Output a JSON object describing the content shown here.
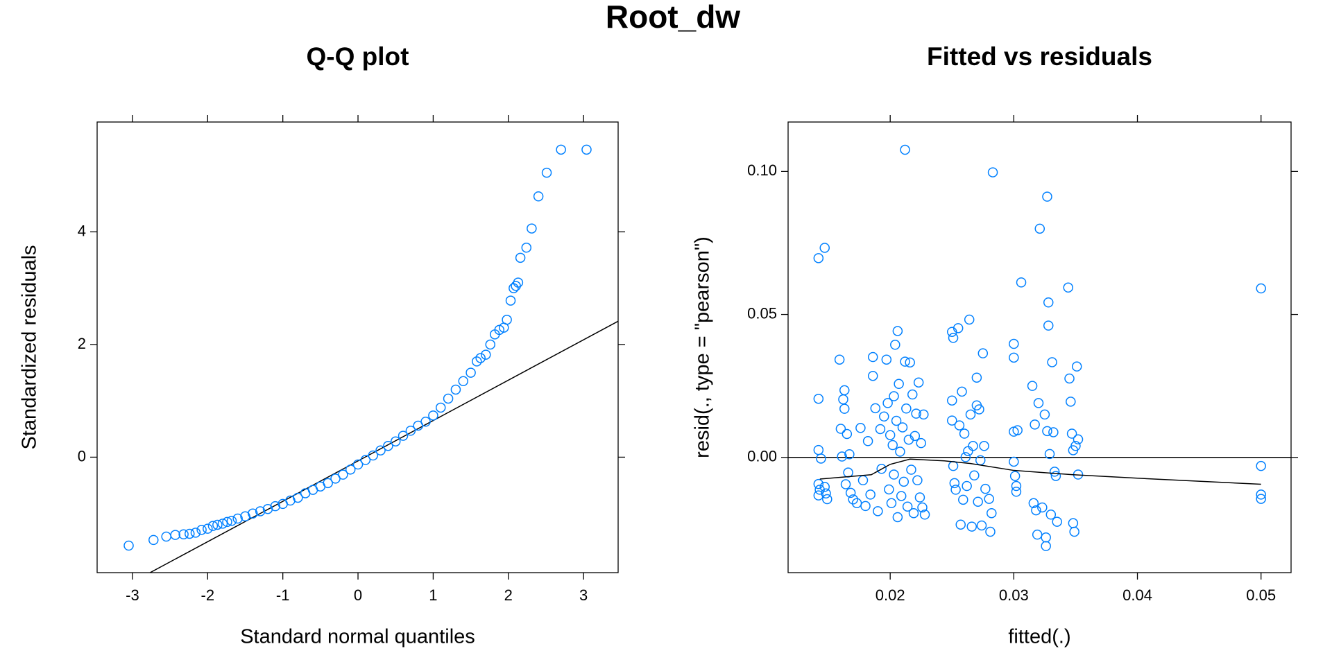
{
  "title": "Root_dw",
  "chart_data": [
    {
      "type": "scatter",
      "title": "Q-Q plot",
      "xlabel": "Standard normal quantiles",
      "ylabel": "Standardized residuals",
      "color": "#0080ff",
      "xlim": [
        -3.47,
        3.46
      ],
      "ylim": [
        -2.05,
        5.95
      ],
      "xticks": [
        -3,
        -2,
        -1,
        0,
        1,
        2,
        3
      ],
      "yticks": [
        0,
        2,
        4
      ],
      "x": [
        -3.05,
        -2.72,
        -2.55,
        -2.43,
        -2.32,
        -2.24,
        -2.16,
        -2.08,
        -2.0,
        -1.93,
        -1.87,
        -1.8,
        -1.74,
        -1.68,
        -1.6,
        -1.5,
        -1.4,
        -1.3,
        -1.2,
        -1.1,
        -1.0,
        -0.9,
        -0.8,
        -0.7,
        -0.6,
        -0.5,
        -0.4,
        -0.3,
        -0.2,
        -0.1,
        0.0,
        0.1,
        0.2,
        0.3,
        0.4,
        0.5,
        0.6,
        0.7,
        0.8,
        0.9,
        1.0,
        1.1,
        1.2,
        1.3,
        1.4,
        1.5,
        1.58,
        1.63,
        1.7,
        1.76,
        1.82,
        1.88,
        1.94,
        1.98,
        2.03,
        2.07,
        2.1,
        2.13,
        2.16,
        2.24,
        2.31,
        2.4,
        2.51,
        2.7,
        3.04
      ],
      "y": [
        -1.57,
        -1.47,
        -1.41,
        -1.38,
        -1.37,
        -1.36,
        -1.34,
        -1.29,
        -1.27,
        -1.22,
        -1.2,
        -1.18,
        -1.15,
        -1.13,
        -1.09,
        -1.05,
        -1.0,
        -0.96,
        -0.92,
        -0.87,
        -0.83,
        -0.77,
        -0.72,
        -0.64,
        -0.58,
        -0.52,
        -0.46,
        -0.38,
        -0.31,
        -0.22,
        -0.13,
        -0.05,
        0.03,
        0.12,
        0.2,
        0.28,
        0.38,
        0.47,
        0.56,
        0.63,
        0.74,
        0.88,
        1.04,
        1.2,
        1.35,
        1.5,
        1.7,
        1.76,
        1.82,
        2.0,
        2.18,
        2.26,
        2.3,
        2.44,
        2.78,
        3.0,
        3.04,
        3.1,
        3.54,
        3.72,
        4.06,
        4.63,
        5.05,
        5.46,
        5.46
      ],
      "line": {
        "intercept": -0.067,
        "slope": 0.717
      }
    },
    {
      "type": "scatter",
      "title": "Fitted vs residuals",
      "xlabel": "fitted(.)",
      "ylabel": "resid(., type = \"pearson\")",
      "color": "#0080ff",
      "xlim": [
        0.01174,
        0.05243
      ],
      "ylim": [
        -0.0403,
        0.1173
      ],
      "xticks": [
        0.02,
        0.03,
        0.04,
        0.05
      ],
      "yticks": [
        {
          "value": 0,
          "label": "0.00"
        },
        0.05,
        {
          "value": 0.1,
          "label": "0.10"
        }
      ],
      "x": [
        0.0142,
        0.0147,
        0.0142,
        0.0142,
        0.0144,
        0.0142,
        0.0147,
        0.0143,
        0.0142,
        0.0148,
        0.0149,
        0.0159,
        0.0163,
        0.0162,
        0.0163,
        0.016,
        0.0165,
        0.0167,
        0.0161,
        0.0166,
        0.0164,
        0.0168,
        0.017,
        0.0173,
        0.0176,
        0.0178,
        0.018,
        0.0182,
        0.0184,
        0.0186,
        0.0186,
        0.0188,
        0.019,
        0.0192,
        0.0193,
        0.0195,
        0.0197,
        0.0198,
        0.0199,
        0.02,
        0.0201,
        0.0202,
        0.0203,
        0.0203,
        0.0204,
        0.0205,
        0.0206,
        0.0206,
        0.0207,
        0.0208,
        0.0209,
        0.021,
        0.0211,
        0.0212,
        0.0212,
        0.0213,
        0.0214,
        0.0215,
        0.0216,
        0.0217,
        0.0218,
        0.0219,
        0.022,
        0.0221,
        0.0222,
        0.0223,
        0.0224,
        0.0225,
        0.0226,
        0.0227,
        0.0228,
        0.025,
        0.025,
        0.025,
        0.0251,
        0.0251,
        0.0252,
        0.0253,
        0.0255,
        0.0256,
        0.0257,
        0.0258,
        0.0259,
        0.026,
        0.0261,
        0.0262,
        0.0263,
        0.0264,
        0.0265,
        0.0266,
        0.0267,
        0.0268,
        0.027,
        0.027,
        0.0271,
        0.0272,
        0.0273,
        0.0274,
        0.0275,
        0.0276,
        0.0277,
        0.028,
        0.0281,
        0.0282,
        0.0283,
        0.03,
        0.03,
        0.03,
        0.03,
        0.0301,
        0.0302,
        0.0302,
        0.0303,
        0.0306,
        0.0315,
        0.0316,
        0.0317,
        0.0318,
        0.0319,
        0.032,
        0.0321,
        0.0323,
        0.0325,
        0.0326,
        0.0326,
        0.0327,
        0.0327,
        0.0328,
        0.0328,
        0.0329,
        0.033,
        0.0331,
        0.0332,
        0.0333,
        0.0334,
        0.0335,
        0.0344,
        0.0345,
        0.0346,
        0.0347,
        0.0348,
        0.0348,
        0.0349,
        0.035,
        0.0351,
        0.0352,
        0.0352,
        0.05,
        0.05,
        0.05,
        0.05
      ],
      "y": [
        0.0697,
        0.0733,
        0.0205,
        0.0026,
        -0.0004,
        -0.0093,
        -0.0103,
        -0.0113,
        -0.0133,
        -0.0126,
        -0.0146,
        0.0342,
        0.0235,
        0.0203,
        0.017,
        0.01,
        0.0082,
        0.0011,
        0.0003,
        -0.0053,
        -0.0094,
        -0.0124,
        -0.0147,
        -0.016,
        0.0103,
        -0.008,
        -0.017,
        0.0057,
        -0.013,
        0.0351,
        0.0285,
        0.0172,
        -0.0188,
        0.0099,
        -0.004,
        0.0143,
        0.0342,
        0.019,
        -0.0112,
        0.0078,
        -0.016,
        0.0043,
        0.0214,
        -0.006,
        0.0394,
        0.0128,
        0.0442,
        -0.0209,
        0.0257,
        0.002,
        -0.0135,
        0.0105,
        -0.0085,
        0.0335,
        0.1076,
        0.0171,
        -0.0172,
        0.0062,
        0.0332,
        -0.0043,
        0.022,
        -0.0195,
        0.0075,
        0.0153,
        -0.008,
        0.0262,
        -0.014,
        0.005,
        -0.0175,
        0.015,
        -0.02,
        0.0199,
        0.0129,
        0.0439,
        0.0418,
        -0.003,
        -0.009,
        -0.0113,
        0.0452,
        0.0112,
        -0.0235,
        0.023,
        -0.0148,
        0.0083,
        0.0001,
        -0.01,
        0.0022,
        0.0482,
        0.015,
        -0.0242,
        0.004,
        -0.0063,
        0.0279,
        0.0182,
        -0.0155,
        0.0168,
        -0.001,
        -0.0238,
        0.0364,
        0.004,
        -0.011,
        -0.0145,
        -0.026,
        -0.0195,
        0.0997,
        0.0397,
        0.0349,
        0.009,
        -0.0015,
        -0.0065,
        -0.01,
        -0.012,
        0.0095,
        0.0612,
        0.025,
        -0.016,
        0.0115,
        -0.0185,
        -0.027,
        0.019,
        0.08,
        -0.0175,
        0.015,
        -0.028,
        -0.031,
        0.0912,
        0.0092,
        0.0542,
        0.0461,
        0.0012,
        -0.02,
        0.0333,
        0.0088,
        -0.005,
        -0.0065,
        -0.0225,
        0.0594,
        0.0276,
        0.0195,
        0.0083,
        0.0025,
        -0.023,
        -0.026,
        0.004,
        0.0318,
        0.0063,
        -0.006,
        0.0591,
        -0.003,
        -0.013,
        -0.0145
      ],
      "hline": 0,
      "smooth": {
        "x": [
          0.01431,
          0.01847,
          0.02,
          0.0216,
          0.02438,
          0.02646,
          0.03,
          0.03479,
          0.04,
          0.05
        ],
        "y": [
          -0.00758,
          -0.00606,
          -0.00242,
          -0.00061,
          -0.00121,
          -0.00212,
          -0.00455,
          -0.00606,
          -0.00727,
          -0.00939
        ]
      }
    }
  ]
}
